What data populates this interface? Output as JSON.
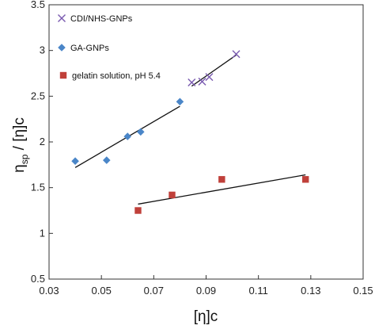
{
  "chart_data": {
    "type": "scatter",
    "title": "",
    "xlabel": "[η]c",
    "ylabel": {
      "main": "η",
      "sub": "sp",
      "rest": " / [η]c"
    },
    "xlim": [
      0.03,
      0.15
    ],
    "ylim": [
      0.5,
      3.5
    ],
    "x_ticks": [
      "0.03",
      "0.05",
      "0.07",
      "0.09",
      "0.11",
      "0.13",
      "0.15"
    ],
    "y_ticks": [
      "0.5",
      "1",
      "1.5",
      "2",
      "2.5",
      "3",
      "3.5"
    ],
    "grid": false,
    "legend_position": "top-left",
    "series": [
      {
        "name": "CDI/NHS-GNPs",
        "marker": "x",
        "color": "#7a5bb0",
        "x": [
          0.0845,
          0.0885,
          0.0912,
          0.1015
        ],
        "y": [
          2.65,
          2.66,
          2.71,
          2.96
        ],
        "fit": [
          [
            0.0845,
            2.61
          ],
          [
            0.1015,
            2.95
          ]
        ]
      },
      {
        "name": "GA-GNPs",
        "marker": "diamond",
        "color": "#4a86c8",
        "x": [
          0.04,
          0.052,
          0.06,
          0.065,
          0.08
        ],
        "y": [
          1.79,
          1.8,
          2.06,
          2.11,
          2.44
        ],
        "fit": [
          [
            0.04,
            1.72
          ],
          [
            0.08,
            2.39
          ]
        ]
      },
      {
        "name": "gelatin solution,  pH 5.4",
        "marker": "square",
        "color": "#c0403a",
        "x": [
          0.064,
          0.077,
          0.096,
          0.128
        ],
        "y": [
          1.25,
          1.42,
          1.59,
          1.59
        ],
        "fit": [
          [
            0.064,
            1.32
          ],
          [
            0.128,
            1.64
          ]
        ]
      }
    ]
  }
}
